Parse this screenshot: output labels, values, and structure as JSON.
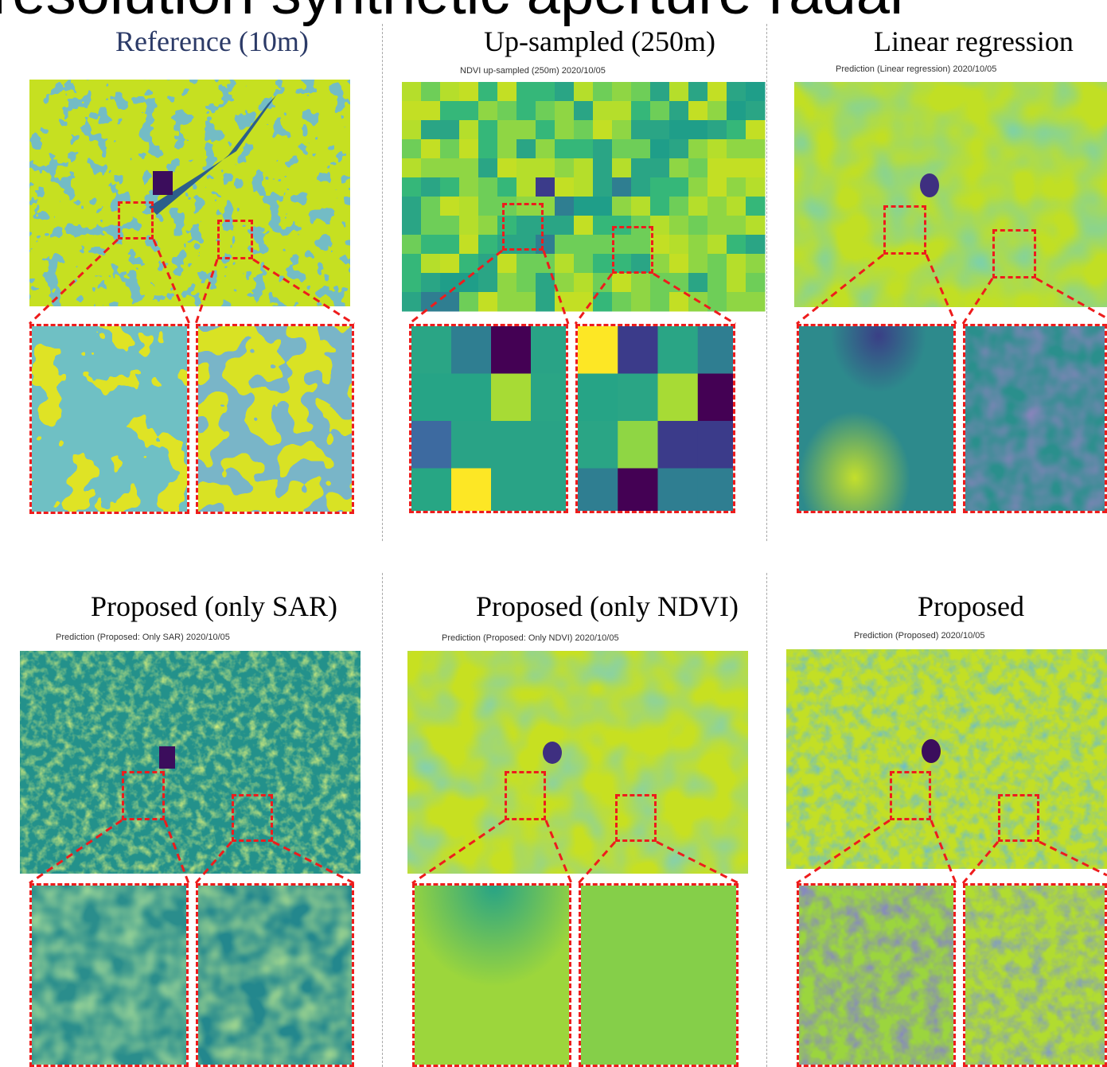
{
  "slide": {
    "title_fragment": "resolution synthetic aperture radar"
  },
  "panels": [
    {
      "id": "reference",
      "caption": "Reference (10m)",
      "map_caption": ""
    },
    {
      "id": "upsampled",
      "caption": "Up-sampled (250m)",
      "map_caption": "NDVI up-sampled (250m) 2020/10/05"
    },
    {
      "id": "linear",
      "caption": "Linear regression",
      "map_caption": "Prediction (Linear regression) 2020/10/05"
    },
    {
      "id": "only-sar",
      "caption": "Proposed (only SAR)",
      "map_caption": "Prediction (Proposed: Only SAR) 2020/10/05"
    },
    {
      "id": "only-ndvi",
      "caption": "Proposed (only NDVI)",
      "map_caption": "Prediction (Proposed: Only NDVI) 2020/10/05"
    },
    {
      "id": "proposed",
      "caption": "Proposed",
      "map_caption": "Prediction (Proposed) 2020/10/05"
    }
  ],
  "colors": {
    "roi_outline": "#ee1c1c",
    "colormap": "viridis",
    "yellow": "#fde725",
    "yellow_green": "#b5de2b",
    "green": "#6ece58",
    "teal": "#35b779",
    "teal_blue": "#1f9e89",
    "blue": "#31688e",
    "indigo": "#443983",
    "purple": "#440154"
  },
  "upsampled_zoom": {
    "left_grid": [
      [
        "#2aa585",
        "#2f7e91",
        "#440154",
        "#29a386"
      ],
      [
        "#26a486",
        "#26a486",
        "#a7db35",
        "#2aa585"
      ],
      [
        "#3d6aa0",
        "#29a386",
        "#29a386",
        "#29a386"
      ],
      [
        "#27a684",
        "#fde725",
        "#29a386",
        "#29a386"
      ]
    ],
    "right_grid": [
      [
        "#fde725",
        "#3b3b8a",
        "#2aa585",
        "#2f7e91"
      ],
      [
        "#26a486",
        "#2aa585",
        "#a7db35",
        "#440154"
      ],
      [
        "#2aa585",
        "#8fd644",
        "#3b3b8a",
        "#3b3b8a"
      ],
      [
        "#2f7e91",
        "#440154",
        "#2f7e91",
        "#2f7e91"
      ]
    ]
  }
}
